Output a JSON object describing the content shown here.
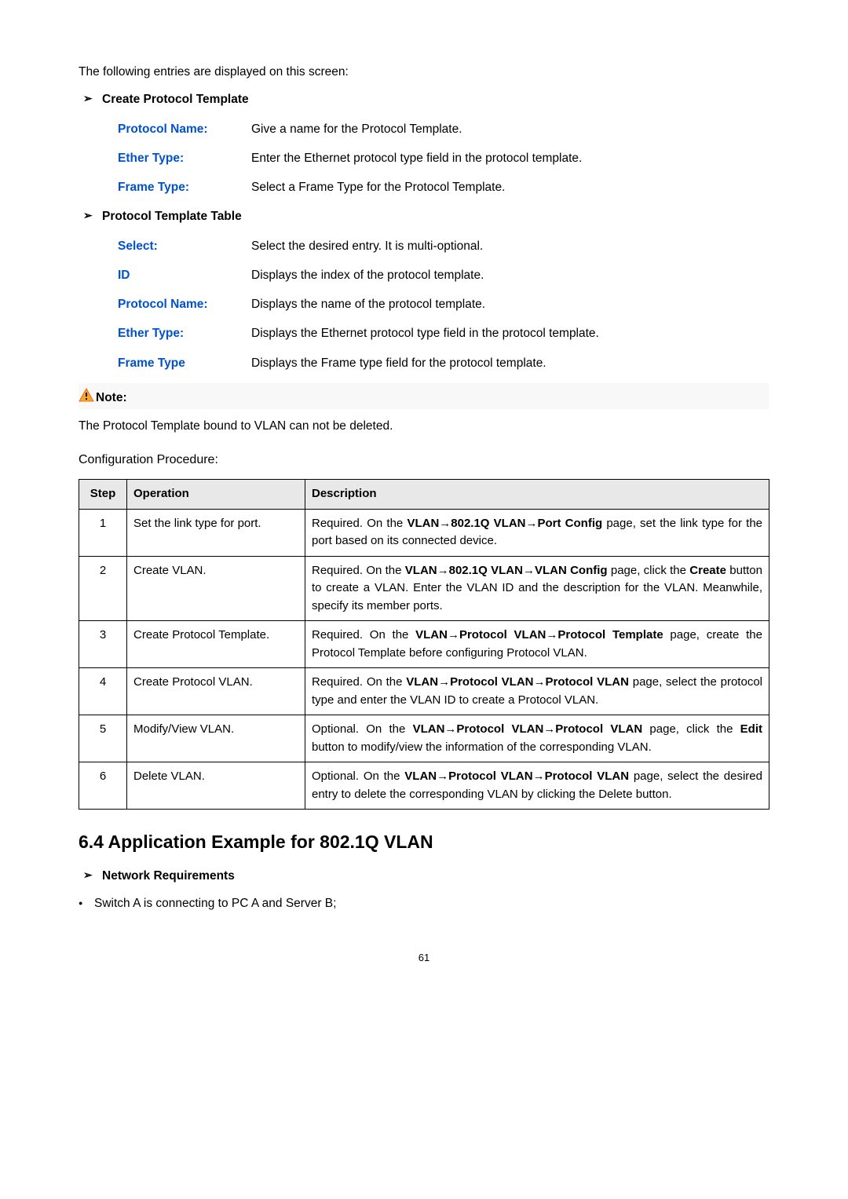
{
  "intro": "The following entries are displayed on this screen:",
  "sections": [
    {
      "title": "Create Protocol Template",
      "fields": [
        {
          "label": "Protocol Name:",
          "desc": "Give a name for the Protocol Template."
        },
        {
          "label": "Ether Type:",
          "desc": "Enter the Ethernet protocol type field in the protocol template."
        },
        {
          "label": "Frame Type:",
          "desc": "Select a Frame Type for the Protocol Template."
        }
      ]
    },
    {
      "title": "Protocol Template Table",
      "fields": [
        {
          "label": "Select:",
          "desc": "Select the desired entry. It is multi-optional."
        },
        {
          "label": "ID",
          "desc": "Displays the index of the protocol template."
        },
        {
          "label": "Protocol Name:",
          "desc": "Displays the name of the protocol template."
        },
        {
          "label": "Ether Type:",
          "desc": "Displays the Ethernet protocol type field in the protocol template."
        },
        {
          "label": "Frame Type",
          "desc": "Displays the Frame type field for the protocol template."
        }
      ]
    }
  ],
  "note": {
    "title": "Note:",
    "text": "The Protocol Template bound to VLAN can not be deleted."
  },
  "configTitle": "Configuration Procedure:",
  "table": {
    "headers": {
      "step": "Step",
      "operation": "Operation",
      "description": "Description"
    },
    "rows": [
      {
        "step": "1",
        "operation": "Set the link type for port.",
        "descHtml": "Required. On the <b>VLAN→802.1Q VLAN→Port Config</b> page, set the link type for the port based on its connected device."
      },
      {
        "step": "2",
        "operation": "Create VLAN.",
        "descHtml": "Required. On the <b>VLAN→802.1Q VLAN→VLAN Config</b> page, click the <b>Create</b> button to create a VLAN. Enter the VLAN ID and the description for the VLAN. Meanwhile, specify its member ports."
      },
      {
        "step": "3",
        "operation": "Create Protocol Template.",
        "descHtml": "Required. On the <b>VLAN→Protocol VLAN→Protocol Template</b> page, create the Protocol Template before configuring Protocol VLAN."
      },
      {
        "step": "4",
        "operation": "Create Protocol VLAN.",
        "descHtml": "Required. On the <b>VLAN→Protocol VLAN→Protocol VLAN</b> page, select the protocol type and enter the VLAN ID to create a Protocol VLAN."
      },
      {
        "step": "5",
        "operation": "Modify/View VLAN.",
        "descHtml": "Optional. On the <b>VLAN→Protocol VLAN→Protocol VLAN</b> page, click the <b>Edit</b> button to modify/view the information of the corresponding VLAN."
      },
      {
        "step": "6",
        "operation": "Delete VLAN.",
        "descHtml": "Optional. On the <b>VLAN→Protocol VLAN→Protocol VLAN</b> page, select the desired entry to delete the corresponding VLAN by clicking the Delete button."
      }
    ]
  },
  "mainHeading": "6.4  Application Example for 802.1Q VLAN",
  "network": {
    "title": "Network Requirements",
    "item1": "Switch A is connecting to PC A and Server B;"
  },
  "pageNumber": "61"
}
